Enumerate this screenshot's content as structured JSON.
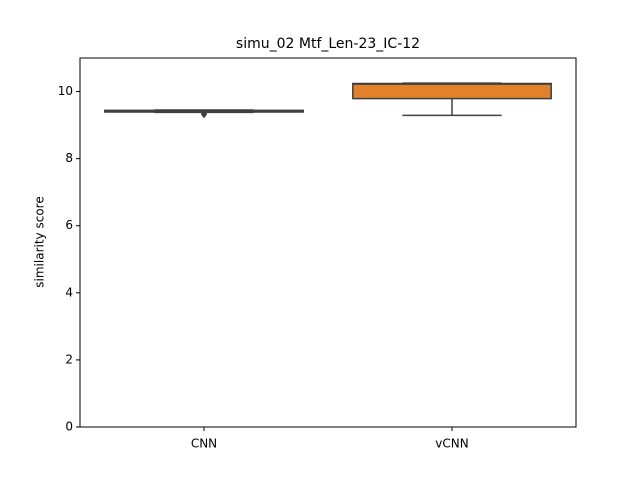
{
  "chart_data": {
    "type": "box",
    "title": "simu_02 Mtf_Len-23_IC-12",
    "y_label": "similarity score",
    "categories": [
      "CNN",
      "vCNN"
    ],
    "boxes": [
      {
        "color": "#3274a1",
        "min": 9.38,
        "q1": 9.39,
        "median": 9.41,
        "q3": 9.44,
        "max": 9.45,
        "outliers": [
          9.32,
          9.34
        ]
      },
      {
        "color": "#e1812c",
        "min": 9.29,
        "q1": 9.79,
        "median": 10.22,
        "q3": 10.24,
        "max": 10.25,
        "outliers": []
      }
    ],
    "ylim": [
      0,
      11
    ],
    "yticks": [
      0,
      2,
      4,
      6,
      8,
      10
    ],
    "grid": false
  }
}
